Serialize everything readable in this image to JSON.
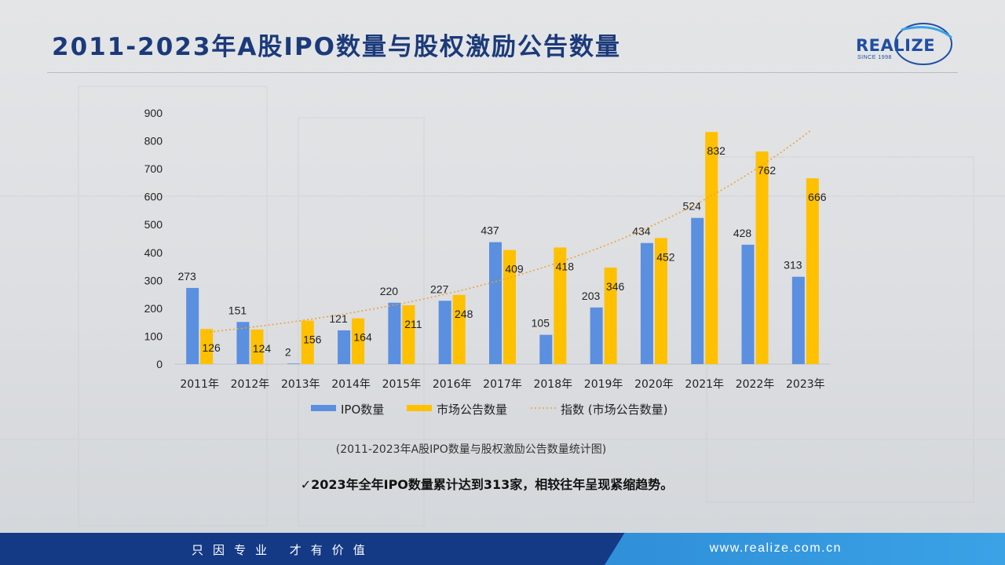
{
  "header": {
    "title": "2011-2023年A股IPO数量与股权激励公告数量",
    "logo_text": "REALIZE",
    "logo_sub": "SINCE 1998"
  },
  "caption": "(2011-2023年A股IPO数量与股权激励公告数量统计图)",
  "note": "✓2023年全年IPO数量累计达到313家，相较往年呈现紧缩趋势。",
  "footer": {
    "slogan": "只因专业 才有价值",
    "url": "www.realize.com.cn"
  },
  "colors": {
    "title": "#1b3a7a",
    "ipo": "#5b8fe0",
    "announce": "#ffc000",
    "trend": "#f0a030",
    "footer_left": "#143a86",
    "footer_right": "#3ba2e6"
  },
  "chart_data": {
    "type": "bar",
    "categories": [
      "2011年",
      "2012年",
      "2013年",
      "2014年",
      "2015年",
      "2016年",
      "2017年",
      "2018年",
      "2019年",
      "2020年",
      "2021年",
      "2022年",
      "2023年"
    ],
    "series": [
      {
        "name": "IPO数量",
        "values": [
          273,
          151,
          2,
          121,
          220,
          227,
          437,
          105,
          203,
          434,
          524,
          428,
          313
        ]
      },
      {
        "name": "市场公告数量",
        "values": [
          126,
          124,
          156,
          164,
          211,
          248,
          409,
          418,
          346,
          452,
          832,
          762,
          666
        ]
      }
    ],
    "trendline": {
      "name": "指数 (市场公告数量)",
      "type": "exponential",
      "of_series": "市场公告数量"
    },
    "yticks": [
      0,
      100,
      200,
      300,
      400,
      500,
      600,
      700,
      800,
      900
    ],
    "ylim": [
      0,
      900
    ],
    "legend": "bottom",
    "grid": false
  }
}
